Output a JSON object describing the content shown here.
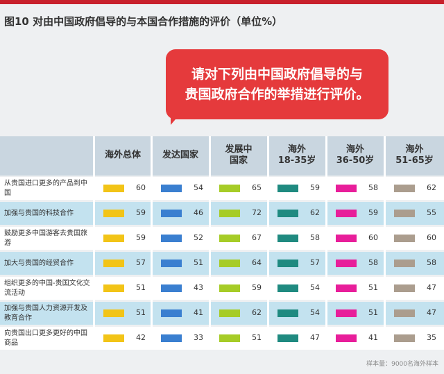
{
  "title": "图10  对由中国政府倡导的与本国合作措施的评价（单位%）",
  "bubble": {
    "line1": "请对下列由中国政府倡导的与",
    "line2": "贵国政府合作的举措进行评价。"
  },
  "colors": {
    "accent": "#c8202c",
    "bubble": "#e53a3c",
    "header_bg": "#c9d6e0",
    "row_alt": "#c3e2ef"
  },
  "chart_data": {
    "type": "table",
    "columns": [
      "海外总体",
      "发达国家",
      "发展中\n国家",
      "海外\n18-35岁",
      "海外\n36-50岁",
      "海外\n51-65岁"
    ],
    "series_colors": [
      "#f2c417",
      "#3a7fd0",
      "#a6cc27",
      "#1f8a80",
      "#e81e9a",
      "#ab9d8e"
    ],
    "rows": [
      {
        "label": "从贵国进口更多的产品到中国",
        "values": [
          60,
          54,
          65,
          59,
          58,
          62
        ]
      },
      {
        "label": "加强与贵国的科技合作",
        "values": [
          59,
          46,
          72,
          62,
          59,
          55
        ]
      },
      {
        "label": "鼓励更多中国游客去贵国旅游",
        "values": [
          59,
          52,
          67,
          58,
          60,
          60
        ]
      },
      {
        "label": "加大与贵国的经贸合作",
        "values": [
          57,
          51,
          64,
          57,
          58,
          58
        ]
      },
      {
        "label": "组织更多的中国-贵国文化交流活动",
        "values": [
          51,
          43,
          59,
          54,
          51,
          47
        ]
      },
      {
        "label": "加强与贵国人力资源开发及教育合作",
        "values": [
          51,
          41,
          62,
          54,
          51,
          47
        ]
      },
      {
        "label": "向贵国出口更多更好的中国商品",
        "values": [
          42,
          33,
          51,
          47,
          41,
          35
        ]
      }
    ]
  },
  "footer": "样本量：9000名海外样本"
}
